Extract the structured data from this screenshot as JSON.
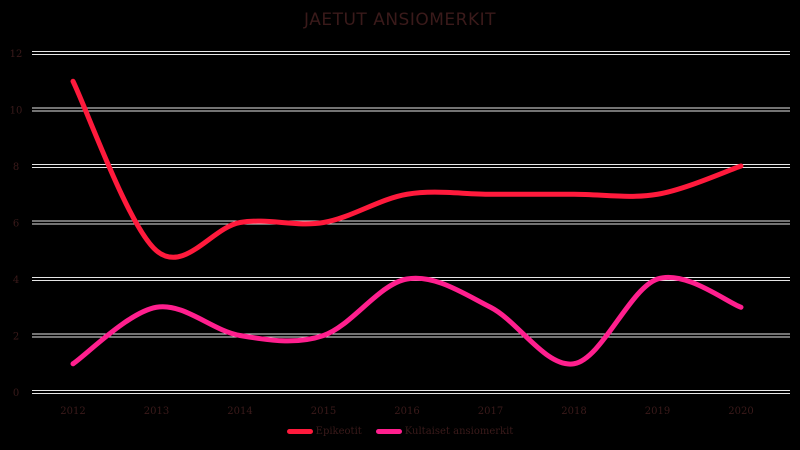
{
  "chart_data": {
    "type": "line",
    "title": "JAETUT ANSIOMERKIT",
    "xlabel": "",
    "ylabel": "",
    "categories": [
      "2012",
      "2013",
      "2014",
      "2015",
      "2016",
      "2017",
      "2018",
      "2019",
      "2020"
    ],
    "series": [
      {
        "name": "Epikeotit",
        "color": "#ff1a3c",
        "values": [
          11,
          5,
          6,
          6,
          7,
          7,
          7,
          7,
          8
        ]
      },
      {
        "name": "Kultaiset ansiomerkit",
        "color": "#ff1f8e",
        "values": [
          1,
          3,
          2,
          2,
          4,
          3,
          1,
          4,
          3
        ]
      }
    ],
    "ylim": [
      0,
      12
    ],
    "yticks": [
      "0",
      "2",
      "4",
      "6",
      "8",
      "10",
      "12"
    ],
    "grid": true,
    "smooth": true,
    "legend_position": "bottom"
  },
  "colors": {
    "background": "#000000",
    "gridline": "#e6e6e6",
    "text": "#3a1a1a"
  }
}
